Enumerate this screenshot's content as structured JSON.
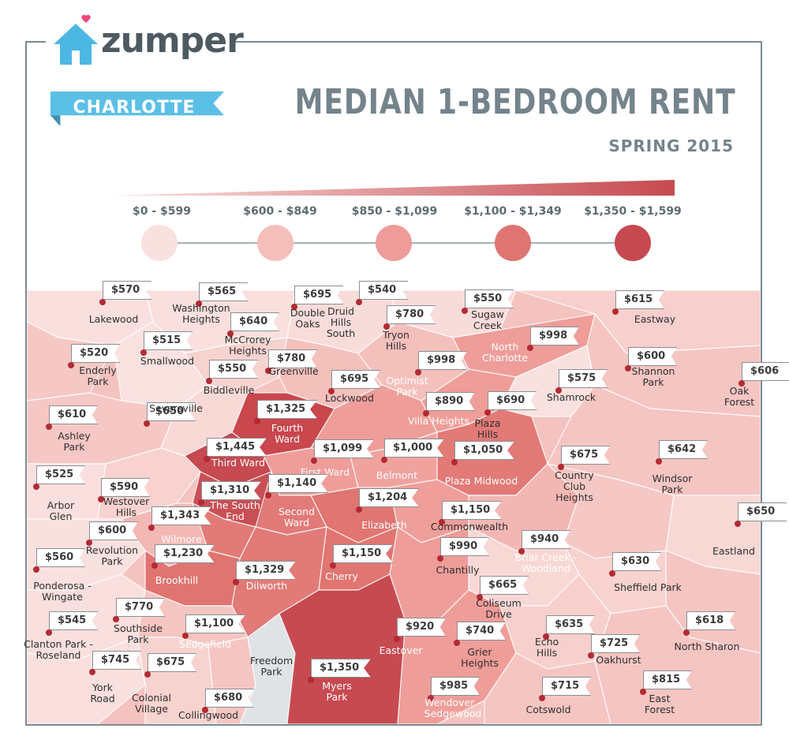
{
  "brand": {
    "name": "zumper",
    "icon": "house-icon",
    "heart_icon": "heart-icon",
    "colors": {
      "icon": "#4db7e4",
      "heart": "#f0457a",
      "text": "#4e5a61"
    }
  },
  "city": "CHARLOTTE",
  "title": "MEDIAN 1-BEDROOM RENT",
  "subtitle": "SPRING 2015",
  "legend": [
    {
      "label": "$0 - $599",
      "color": "#f9e1df"
    },
    {
      "label": "$600 - $849",
      "color": "#f4bfbb"
    },
    {
      "label": "$850 - $1,099",
      "color": "#ee9c99"
    },
    {
      "label": "$1,100 - $1,349",
      "color": "#e07470"
    },
    {
      "label": "$1,350 - $1,599",
      "color": "#c64a50"
    }
  ],
  "neighborhoods": [
    {
      "name": "Lakewood",
      "price": "$570"
    },
    {
      "name": "Washington\nHeights",
      "price": "$565"
    },
    {
      "name": "Double\nOaks",
      "price": "$695"
    },
    {
      "name": "Druid\nHills\nSouth",
      "price": "$540"
    },
    {
      "name": "Tryon\nHills",
      "price": "$780"
    },
    {
      "name": "Sugaw\nCreek",
      "price": "$550"
    },
    {
      "name": "Eastway",
      "price": "$615"
    },
    {
      "name": "McCrorey\nHeights",
      "price": "$640"
    },
    {
      "name": "Smallwood",
      "price": "$515"
    },
    {
      "name": "Enderly\nPark",
      "price": "$520"
    },
    {
      "name": "Greenville",
      "price": "$780"
    },
    {
      "name": "North\nCharlotte",
      "price": "$998"
    },
    {
      "name": "Shannon\nPark",
      "price": "$600"
    },
    {
      "name": "Oak\nForest",
      "price": "$606"
    },
    {
      "name": "Biddleville",
      "price": "$550"
    },
    {
      "name": "Optimist\nPark",
      "price": "$998"
    },
    {
      "name": "Shamrock",
      "price": "$575"
    },
    {
      "name": "Lockwood",
      "price": "$695"
    },
    {
      "name": "Villa Heights",
      "price": "$890"
    },
    {
      "name": "Plaza\nHills",
      "price": "$690"
    },
    {
      "name": "Fourth\nWard",
      "price": "$1,325"
    },
    {
      "name": "Seversville",
      "price": "$650"
    },
    {
      "name": "Ashley\nPark",
      "price": "$610"
    },
    {
      "name": "Third Ward",
      "price": "$1,445"
    },
    {
      "name": "First Ward",
      "price": "$1,099"
    },
    {
      "name": "Belmont",
      "price": "$1,000"
    },
    {
      "name": "Plaza Midwood",
      "price": "$1,050"
    },
    {
      "name": "Country\nClub\nHeights",
      "price": "$675"
    },
    {
      "name": "Windsor\nPark",
      "price": "$642"
    },
    {
      "name": "Arbor\nGlen",
      "price": "$525"
    },
    {
      "name": "Westover\nHills",
      "price": "$590"
    },
    {
      "name": "The South\nEnd",
      "price": "$1,310"
    },
    {
      "name": "Second\nWard",
      "price": "$1,140"
    },
    {
      "name": "Elizabeth",
      "price": "$1,204"
    },
    {
      "name": "Commonwealth",
      "price": "$1,150"
    },
    {
      "name": "Wilmore",
      "price": "$1,343"
    },
    {
      "name": "Eastland",
      "price": "$650"
    },
    {
      "name": "Revolution\nPark",
      "price": "$600"
    },
    {
      "name": "Briar Creek -\nWoodland",
      "price": "$940"
    },
    {
      "name": "Chantilly",
      "price": "$990"
    },
    {
      "name": "Cherry",
      "price": "$1,150"
    },
    {
      "name": "Ponderosa -\nWingate",
      "price": "$560"
    },
    {
      "name": "Brookhill",
      "price": "$1,230"
    },
    {
      "name": "Dilworth",
      "price": "$1,329"
    },
    {
      "name": "Sheffield Park",
      "price": "$630"
    },
    {
      "name": "Coliseum\nDrive",
      "price": "$665"
    },
    {
      "name": "Southside\nPark",
      "price": "$770"
    },
    {
      "name": "Clanton Park -\nRoseland",
      "price": "$545"
    },
    {
      "name": "Sedgefield",
      "price": "$1,100"
    },
    {
      "name": "Eastover",
      "price": "$920"
    },
    {
      "name": "Grier\nHeights",
      "price": "$740"
    },
    {
      "name": "Echo\nHills",
      "price": "$635"
    },
    {
      "name": "North Sharon",
      "price": "$618"
    },
    {
      "name": "Oakhurst",
      "price": "$725"
    },
    {
      "name": "York\nRoad",
      "price": "$745"
    },
    {
      "name": "Colonial\nVillage",
      "price": "$675"
    },
    {
      "name": "Freedom\nPark",
      "price": ""
    },
    {
      "name": "Myers\nPark",
      "price": "$1,350"
    },
    {
      "name": "Wendover -\nSedgewood",
      "price": "$985"
    },
    {
      "name": "Cotswold",
      "price": "$715"
    },
    {
      "name": "East\nForest",
      "price": "$815"
    },
    {
      "name": "Collingwood",
      "price": "$680"
    }
  ]
}
